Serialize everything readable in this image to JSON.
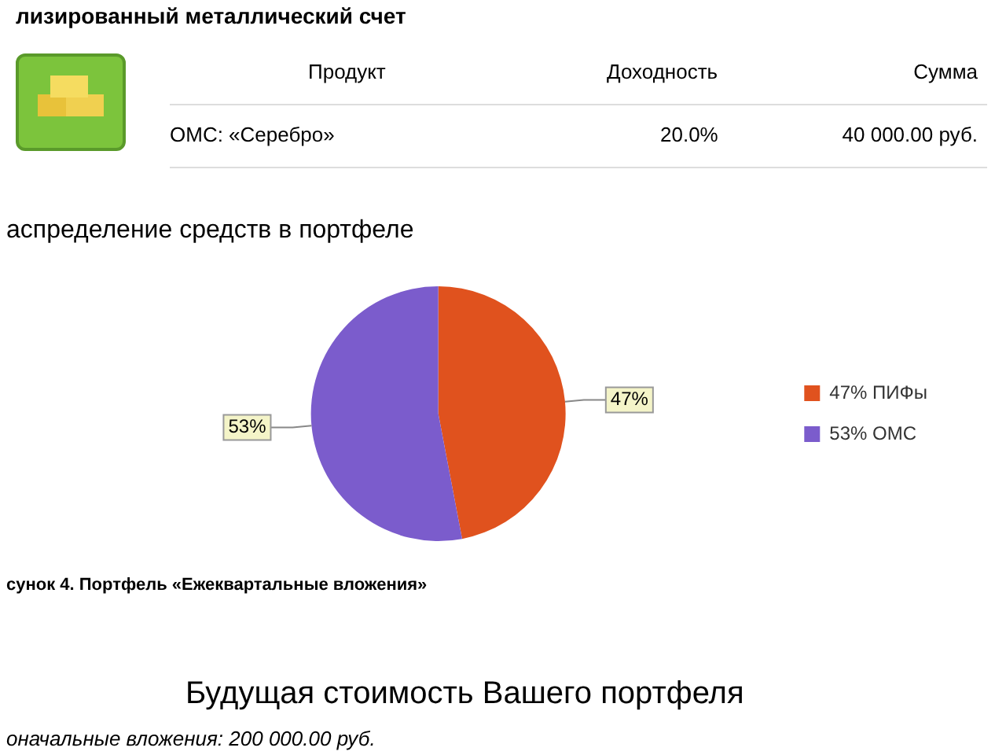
{
  "chart_data": {
    "type": "pie",
    "title": "аспределение средств в портфеле",
    "categories": [
      "47% ПИФы",
      "53% ОМС"
    ],
    "values": [
      47,
      53
    ],
    "colors": [
      "#e0521e",
      "#7b5ccc"
    ],
    "value_labels": [
      "47%",
      "53%"
    ],
    "legend": "right",
    "annotations": [
      "лизированный металлический счет",
      "Продукт",
      "Доходность",
      "Сумма",
      "ОМС: «Серебро»",
      "20.0%",
      "40 000.00 руб.",
      "сунок 4. Портфель «Ежеквартальные вложения»",
      "Будущая стоимость Вашего портфеля",
      "оначальные вложения: 200 000.00 руб."
    ]
  }
}
